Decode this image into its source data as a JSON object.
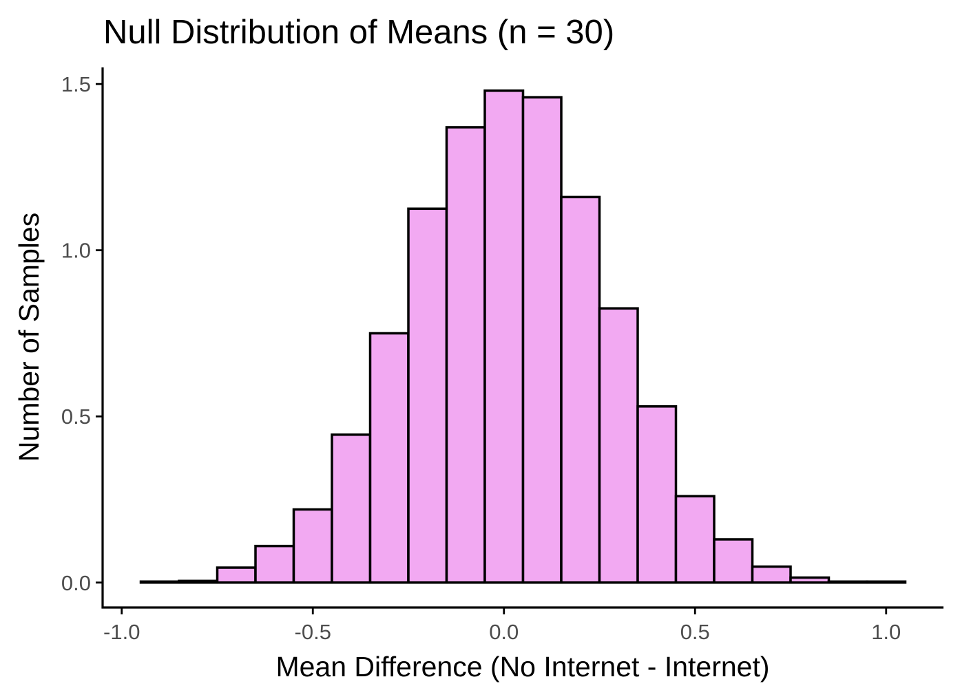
{
  "chart_data": {
    "type": "bar",
    "title": "Null Distribution of Means (n = 30)",
    "xlabel": "Mean Difference (No Internet - Internet)",
    "ylabel": "Number of Samples",
    "xlim": [
      -1.05,
      1.15
    ],
    "ylim": [
      -0.075,
      1.55
    ],
    "x_ticks": [
      -1.0,
      -0.5,
      0.0,
      0.5,
      1.0
    ],
    "x_tick_labels": [
      "-1.0",
      "-0.5",
      "0.0",
      "0.5",
      "1.0"
    ],
    "y_ticks": [
      0.0,
      0.5,
      1.0,
      1.5
    ],
    "y_tick_labels": [
      "0.0",
      "0.5",
      "1.0",
      "1.5"
    ],
    "bin_width": 0.1,
    "bin_centers": [
      -0.9,
      -0.8,
      -0.7,
      -0.6,
      -0.5,
      -0.4,
      -0.3,
      -0.2,
      -0.1,
      0.0,
      0.1,
      0.2,
      0.3,
      0.4,
      0.5,
      0.6,
      0.7,
      0.8,
      0.9,
      1.0
    ],
    "values": [
      0.003,
      0.005,
      0.045,
      0.11,
      0.22,
      0.445,
      0.75,
      1.125,
      1.37,
      1.48,
      1.46,
      1.16,
      0.825,
      0.53,
      0.26,
      0.13,
      0.048,
      0.015,
      0.003,
      0.003
    ],
    "fill_color": "#f2a9f2",
    "edge_color": "#000000",
    "grid": false,
    "legend": "none"
  }
}
